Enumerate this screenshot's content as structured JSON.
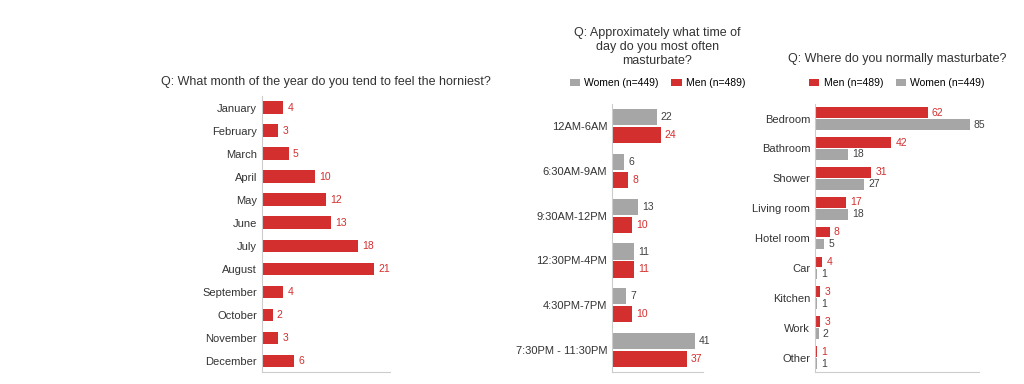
{
  "chart_data": [
    {
      "type": "bar",
      "orientation": "horizontal",
      "title": "Q: What month of the year do you tend to feel the horniest?",
      "categories": [
        "January",
        "February",
        "March",
        "April",
        "May",
        "June",
        "July",
        "August",
        "September",
        "October",
        "November",
        "December"
      ],
      "values": [
        4,
        3,
        5,
        10,
        12,
        13,
        18,
        21,
        4,
        2,
        3,
        6
      ],
      "color": "#d32f2f",
      "xlim": [
        0,
        24
      ],
      "xticks": [],
      "data_labels": true,
      "tick_labels": "y"
    },
    {
      "type": "bar",
      "orientation": "horizontal",
      "title": "Q: Approximately what time of day do you most often masturbate?",
      "categories": [
        "12AM-6AM",
        "6:30AM-9AM",
        "9:30AM-12PM",
        "12:30PM-4PM",
        "4:30PM-7PM",
        "7:30PM - 11:30PM"
      ],
      "series": [
        {
          "name": "Women (n=449)",
          "color": "#a6a6a6",
          "values": [
            22,
            6,
            13,
            11,
            7,
            41
          ]
        },
        {
          "name": "Men (n=489)",
          "color": "#d32f2f",
          "values": [
            24,
            8,
            10,
            11,
            10,
            37
          ]
        }
      ],
      "xlim": [
        0,
        45
      ],
      "xticks": [],
      "legend": "upper center",
      "data_labels": true,
      "tick_labels": "y"
    },
    {
      "type": "bar",
      "orientation": "horizontal",
      "title": "Q: Where do you normally masturbate?",
      "categories": [
        "Bedroom",
        "Bathroom",
        "Shower",
        "Living room",
        "Hotel room",
        "Car",
        "Kitchen",
        "Work",
        "Other"
      ],
      "series": [
        {
          "name": "Men (n=489)",
          "color": "#d32f2f",
          "values": [
            62,
            42,
            31,
            17,
            8,
            4,
            3,
            3,
            1
          ]
        },
        {
          "name": "Women (n=449)",
          "color": "#a6a6a6",
          "values": [
            85,
            18,
            27,
            18,
            5,
            1,
            1,
            2,
            1
          ]
        }
      ],
      "xlim": [
        0,
        90
      ],
      "xticks": [],
      "legend": "upper center",
      "data_labels": true,
      "tick_labels": "y"
    }
  ]
}
